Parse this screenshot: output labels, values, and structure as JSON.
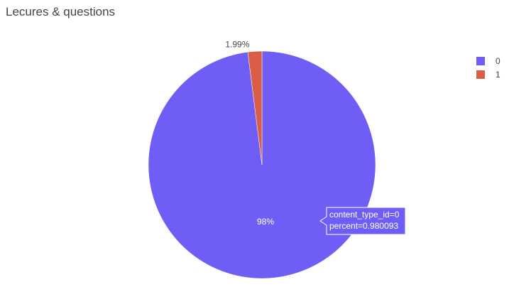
{
  "chart_data": {
    "type": "pie",
    "title": "Lecures & questions",
    "labels": [
      "0",
      "1"
    ],
    "values": [
      0.980093,
      0.019907
    ],
    "text_labels": [
      "98%",
      "1.99%"
    ],
    "colors": [
      "#6f5ef5",
      "#d95d47"
    ],
    "legend": {
      "placement": "top-right",
      "entries": [
        "0",
        "1"
      ]
    },
    "hover": {
      "lines": [
        "content_type_id=0",
        "percent=0.980093"
      ]
    }
  }
}
